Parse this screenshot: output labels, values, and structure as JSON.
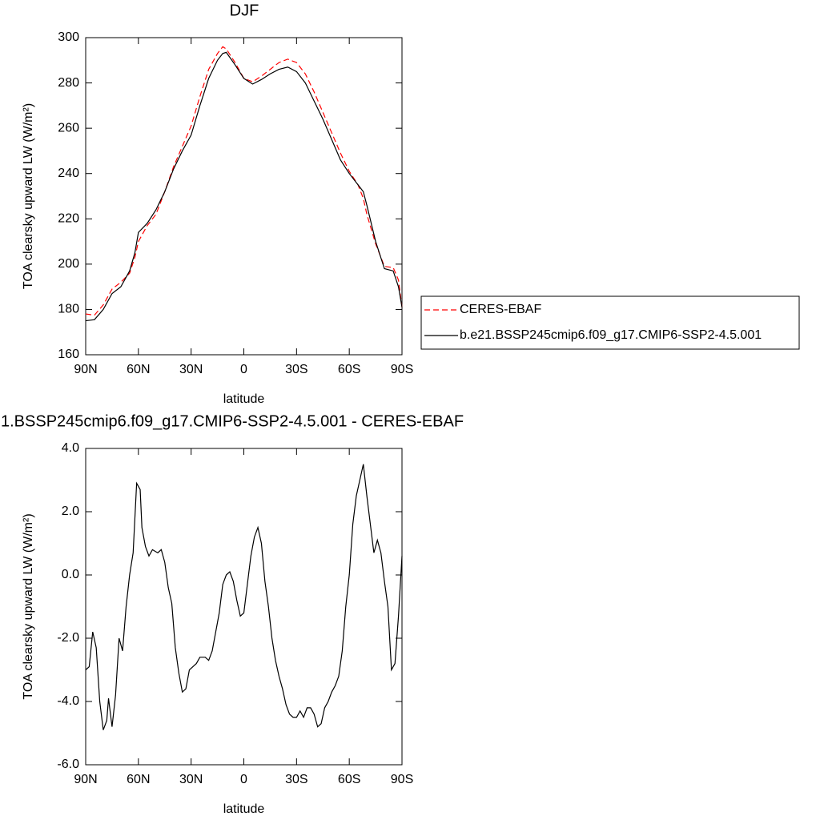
{
  "chart_data": [
    {
      "type": "line",
      "title": "DJF",
      "x_label": "latitude",
      "y_label": "TOA clearsky upward LW (W/m²)",
      "x": [
        -90,
        -85,
        -80,
        -75,
        -70,
        -65,
        -62,
        -60,
        -55,
        -50,
        -45,
        -40,
        -35,
        -30,
        -25,
        -20,
        -15,
        -12,
        -10,
        -5,
        0,
        5,
        10,
        15,
        20,
        25,
        30,
        35,
        40,
        45,
        50,
        55,
        60,
        65,
        68,
        70,
        75,
        80,
        85,
        88,
        90
      ],
      "series": [
        {
          "name": "CERES-EBAF",
          "color": "#ff0000",
          "dashed": true,
          "values": [
            178,
            177.5,
            182,
            189,
            192,
            196,
            203,
            210,
            217,
            222,
            232,
            243,
            252,
            261,
            274,
            286,
            293,
            296,
            295,
            289,
            282,
            280.5,
            283,
            286,
            289,
            290.5,
            289,
            284,
            276,
            267,
            258,
            249,
            241,
            235,
            229,
            222,
            209,
            199,
            198.5,
            193,
            181
          ]
        },
        {
          "name": "b.e21.BSSP245cmip6.f09_g17.CMIP6-SSP2-4.5.001",
          "color": "#000000",
          "dashed": false,
          "values": [
            175,
            175.5,
            180,
            187,
            190,
            197,
            205,
            214,
            218,
            224,
            232,
            242,
            250,
            257,
            270,
            282,
            290,
            293,
            293.5,
            288,
            282,
            279.5,
            281.5,
            284,
            286,
            287,
            285,
            280,
            272,
            264,
            255,
            246,
            240,
            235,
            232,
            226,
            210,
            198,
            197,
            190,
            181
          ]
        }
      ],
      "xlim": [
        -90,
        90
      ],
      "xticks": [
        {
          "value": -90,
          "label": "90N"
        },
        {
          "value": -60,
          "label": "60N"
        },
        {
          "value": -30,
          "label": "30N"
        },
        0,
        {
          "value": 30,
          "label": "30S"
        },
        {
          "value": 60,
          "label": "60S"
        },
        {
          "value": 90,
          "label": "90S"
        }
      ],
      "ylim": [
        160,
        300
      ],
      "yticks": [
        160,
        180,
        200,
        220,
        240,
        260,
        280,
        300
      ],
      "legend": "right"
    },
    {
      "type": "line",
      "title": "1.BSSP245cmip6.f09_g17.CMIP6-SSP2-4.5.001 - CERES-EBAF",
      "x_label": "latitude",
      "y_label": "TOA clearsky upward LW (W/m²)",
      "x": [
        -90,
        -88,
        -86,
        -84,
        -82,
        -80,
        -78,
        -77,
        -75,
        -73,
        -71,
        -69,
        -67,
        -65,
        -63,
        -61,
        -59,
        -58,
        -56,
        -54,
        -52,
        -49,
        -47,
        -45,
        -43,
        -41,
        -39,
        -37,
        -35,
        -33,
        -31,
        -29,
        -27,
        -25,
        -22,
        -20,
        -18,
        -16,
        -14,
        -12,
        -10,
        -8,
        -6,
        -4,
        -2,
        0,
        2,
        4,
        6,
        8,
        10,
        12,
        14,
        16,
        18,
        20,
        22,
        24,
        26,
        28,
        30,
        32,
        34,
        36,
        38,
        40,
        42,
        44,
        46,
        48,
        50,
        52,
        54,
        56,
        58,
        60,
        62,
        64,
        66,
        68,
        70,
        72,
        74,
        76,
        78,
        80,
        82,
        84,
        86,
        88,
        90
      ],
      "series": [
        {
          "color": "#000000",
          "dashed": false,
          "values": [
            -3.0,
            -2.9,
            -1.8,
            -2.3,
            -4.0,
            -4.9,
            -4.6,
            -3.9,
            -4.8,
            -3.8,
            -2.0,
            -2.4,
            -1.0,
            0.0,
            0.7,
            2.9,
            2.7,
            1.5,
            0.9,
            0.6,
            0.8,
            0.7,
            0.8,
            0.4,
            -0.4,
            -0.9,
            -2.3,
            -3.1,
            -3.7,
            -3.6,
            -3.0,
            -2.9,
            -2.8,
            -2.6,
            -2.6,
            -2.7,
            -2.4,
            -1.8,
            -1.2,
            -0.3,
            0.0,
            0.1,
            -0.2,
            -0.8,
            -1.3,
            -1.2,
            -0.3,
            0.6,
            1.2,
            1.5,
            1.0,
            -0.2,
            -1.0,
            -2.0,
            -2.7,
            -3.2,
            -3.6,
            -4.1,
            -4.4,
            -4.5,
            -4.5,
            -4.3,
            -4.5,
            -4.2,
            -4.2,
            -4.4,
            -4.8,
            -4.7,
            -4.2,
            -4.0,
            -3.7,
            -3.5,
            -3.2,
            -2.4,
            -1.0,
            0.0,
            1.6,
            2.5,
            3.0,
            3.5,
            2.5,
            1.6,
            0.7,
            1.1,
            0.7,
            -0.2,
            -1.0,
            -3.0,
            -2.8,
            -1.3,
            0.6
          ]
        }
      ],
      "xlim": [
        -90,
        90
      ],
      "xticks": [
        {
          "value": -90,
          "label": "90N"
        },
        {
          "value": -60,
          "label": "60N"
        },
        {
          "value": -30,
          "label": "30N"
        },
        0,
        {
          "value": 30,
          "label": "30S"
        },
        {
          "value": 60,
          "label": "60S"
        },
        {
          "value": 90,
          "label": "90S"
        }
      ],
      "ylim": [
        -6,
        4
      ],
      "yticks": [
        {
          "value": -6,
          "label": "-6.0"
        },
        {
          "value": -4,
          "label": "-4.0"
        },
        {
          "value": -2,
          "label": "-2.0"
        },
        {
          "value": 0,
          "label": "0.0"
        },
        {
          "value": 2,
          "label": "2.0"
        },
        {
          "value": 4,
          "label": "4.0"
        }
      ]
    }
  ]
}
